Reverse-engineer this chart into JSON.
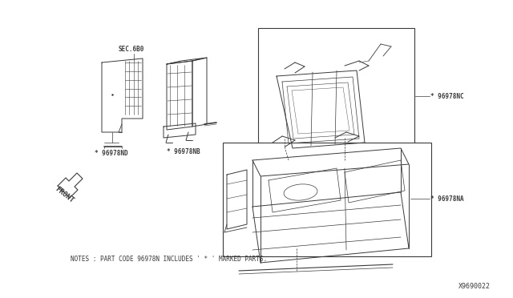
{
  "bg_color": "#ffffff",
  "fig_width": 6.4,
  "fig_height": 3.72,
  "dpi": 100,
  "notes_text": "NOTES : PART CODE 96978N INCLUDES ' * ' MARKED PARTS.",
  "diagram_id": "X9690022",
  "labels": {
    "sec680": "SEC.6B0",
    "part_nb": "* 96978NB",
    "part_nd": "* 96978ND",
    "part_nc": "* 96978NC",
    "part_na": "* 96978NA",
    "front": "FRONT"
  },
  "font_size_notes": 5.5,
  "font_size_labels": 5.5,
  "font_size_id": 6.0,
  "color": "#3a3a3a",
  "lw": 0.6
}
